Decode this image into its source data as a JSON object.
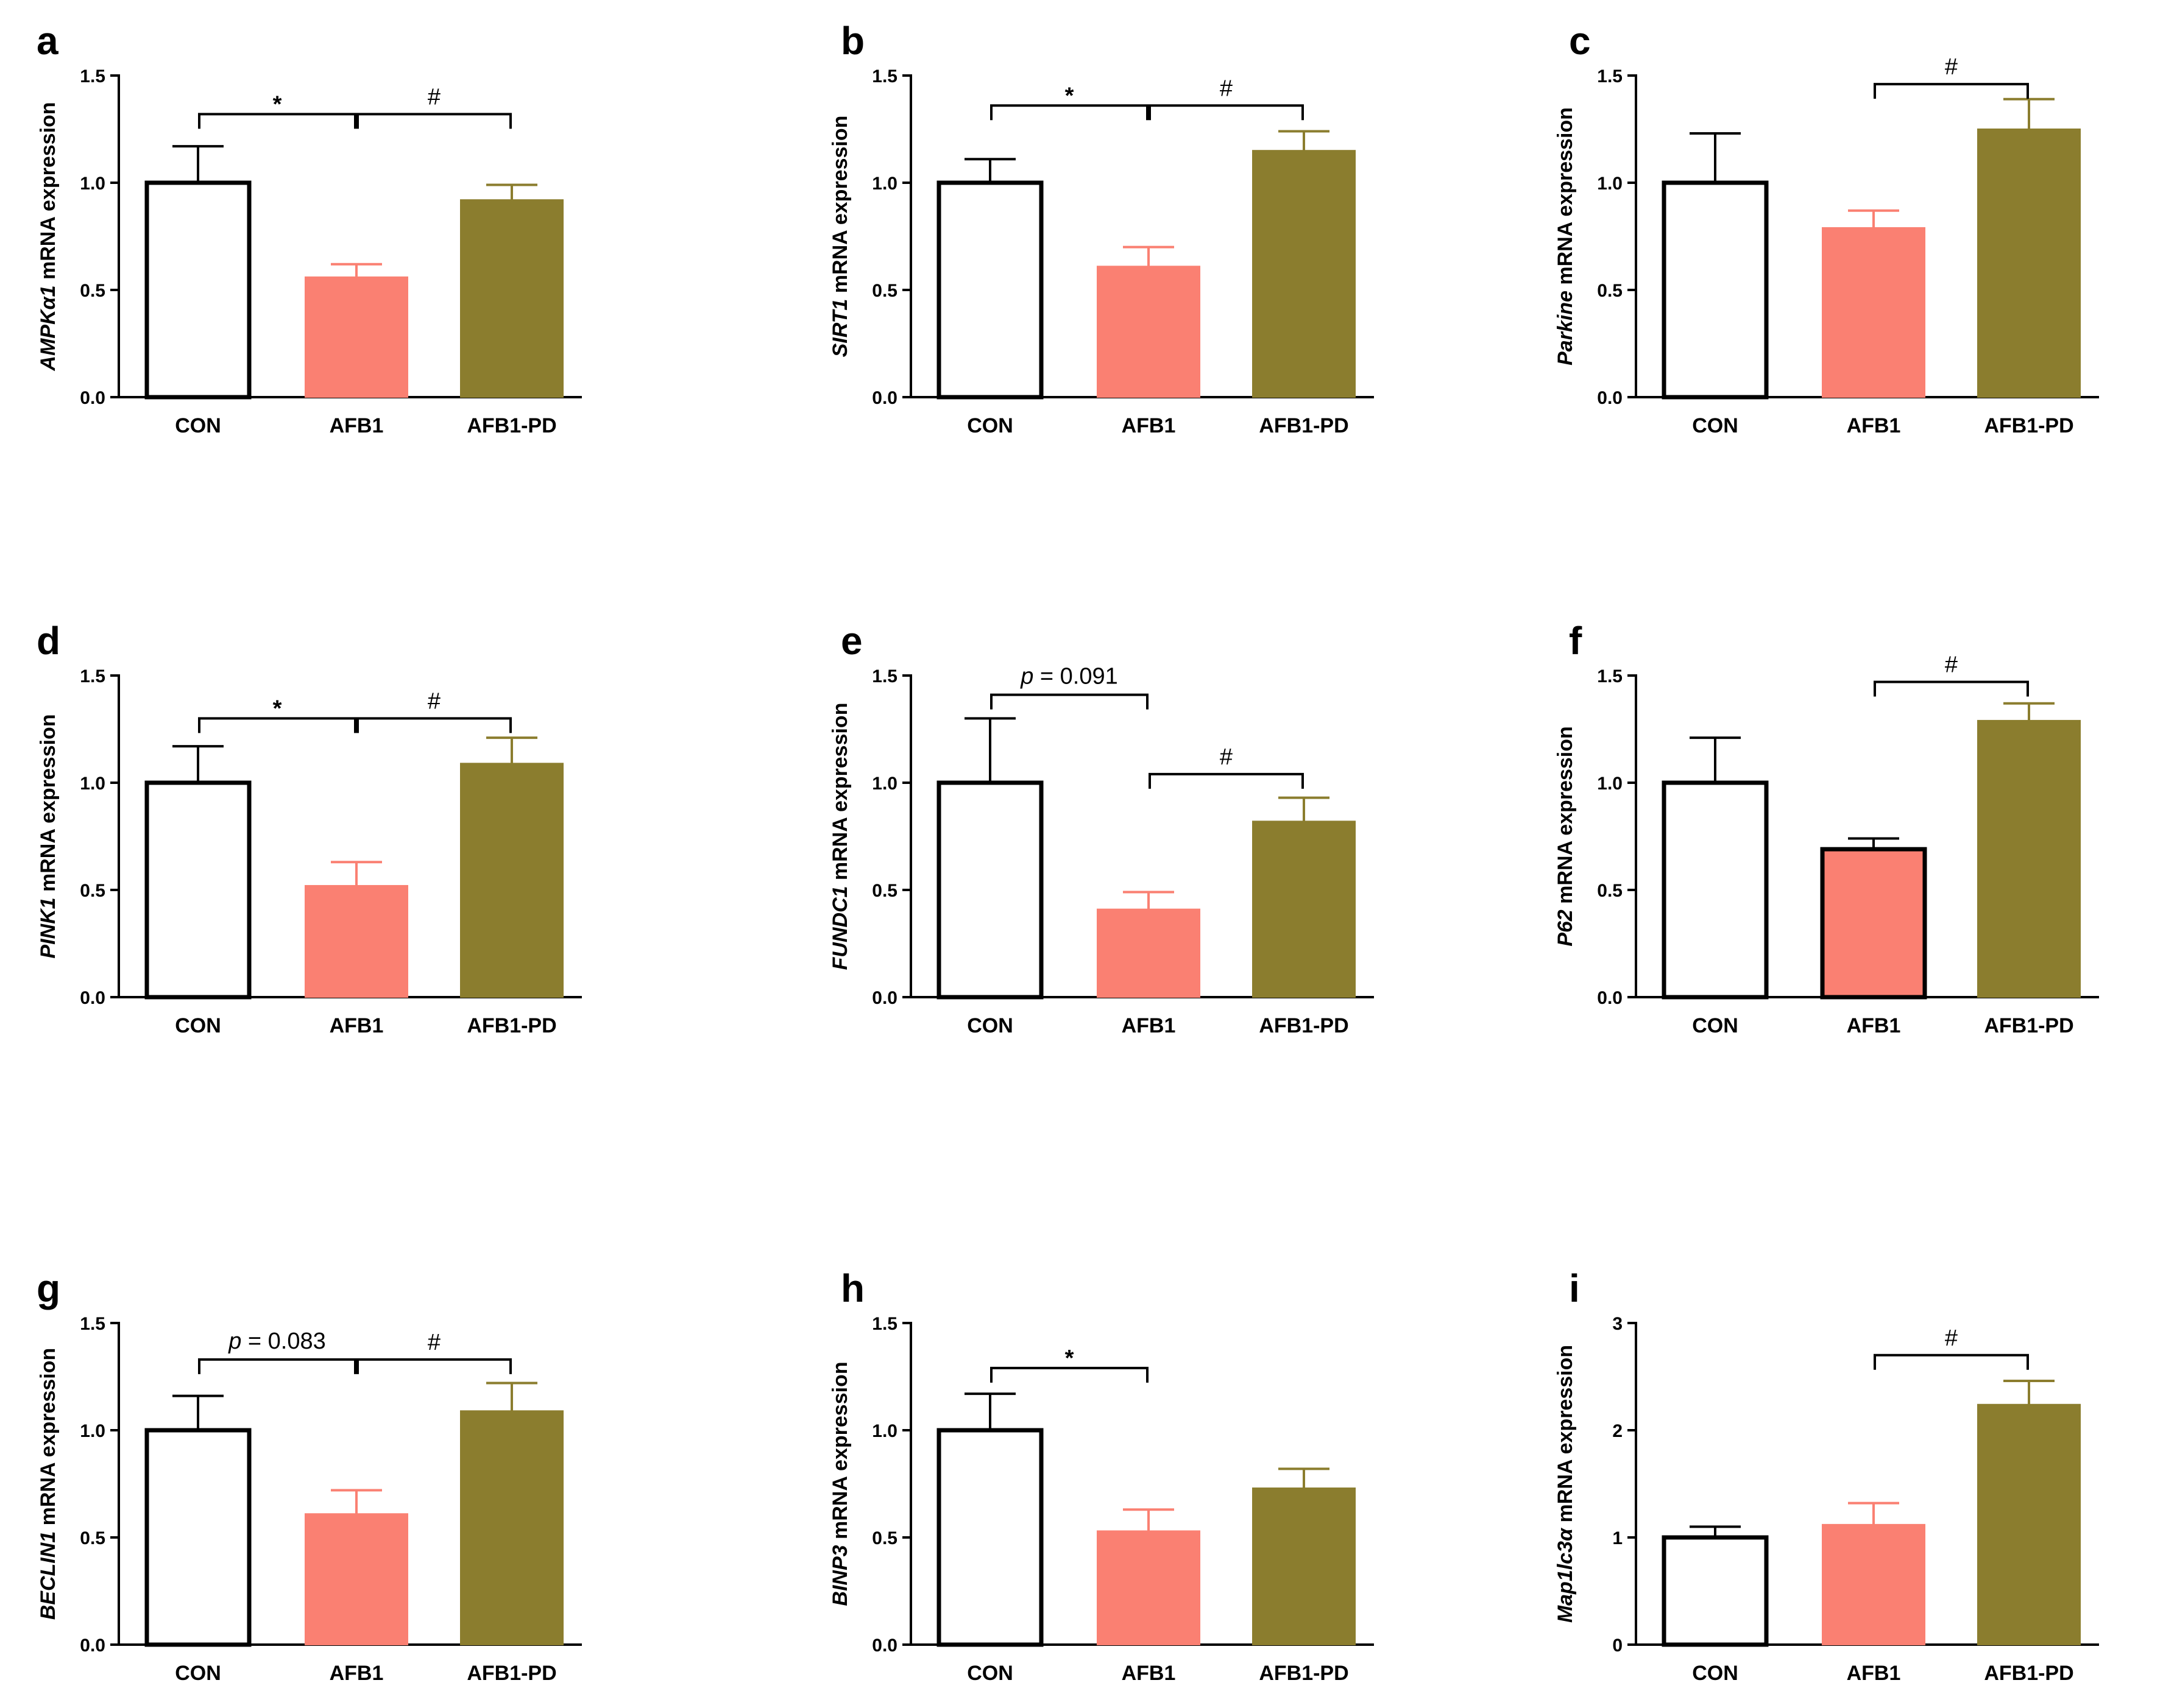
{
  "figure": {
    "background": "#ffffff"
  },
  "colors": {
    "CON": "#ffffff",
    "AFB1": "#fa8072",
    "AFB1-PD": "#8b7d2e",
    "edge": "#000000"
  },
  "chart_data": [
    {
      "panel": "a",
      "type": "bar",
      "gene": "AMPKα1",
      "ylabel_rest": " mRNA expression",
      "categories": [
        "CON",
        "AFB1",
        "AFB1-PD"
      ],
      "values": [
        1.0,
        0.56,
        0.92
      ],
      "errors": [
        0.17,
        0.06,
        0.07
      ],
      "ylim": [
        0,
        1.5
      ],
      "yticks": [
        "0.0",
        "0.5",
        "1.0",
        "1.5"
      ],
      "ytick_values": [
        0,
        0.5,
        1.0,
        1.5
      ],
      "edge_black_for": [
        "CON"
      ],
      "annotations": [
        {
          "from": 0,
          "to": 1,
          "level": 1.32,
          "text": "*",
          "kind": "star"
        },
        {
          "from": 1,
          "to": 2,
          "level": 1.32,
          "text": "#",
          "kind": "hash"
        }
      ]
    },
    {
      "panel": "b",
      "type": "bar",
      "gene": "SIRT1",
      "ylabel_rest": " mRNA expression",
      "categories": [
        "CON",
        "AFB1",
        "AFB1-PD"
      ],
      "values": [
        1.0,
        0.61,
        1.15
      ],
      "errors": [
        0.11,
        0.09,
        0.09
      ],
      "ylim": [
        0,
        1.5
      ],
      "yticks": [
        "0.0",
        "0.5",
        "1.0",
        "1.5"
      ],
      "ytick_values": [
        0,
        0.5,
        1.0,
        1.5
      ],
      "edge_black_for": [
        "CON"
      ],
      "annotations": [
        {
          "from": 0,
          "to": 1,
          "level": 1.36,
          "text": "*",
          "kind": "star"
        },
        {
          "from": 1,
          "to": 2,
          "level": 1.36,
          "text": "#",
          "kind": "hash"
        }
      ]
    },
    {
      "panel": "c",
      "type": "bar",
      "gene": "Parkine",
      "ylabel_rest": " mRNA expression",
      "categories": [
        "CON",
        "AFB1",
        "AFB1-PD"
      ],
      "values": [
        1.0,
        0.79,
        1.25
      ],
      "errors": [
        0.23,
        0.08,
        0.14
      ],
      "ylim": [
        0,
        1.5
      ],
      "yticks": [
        "0.0",
        "0.5",
        "1.0",
        "1.5"
      ],
      "ytick_values": [
        0,
        0.5,
        1.0,
        1.5
      ],
      "edge_black_for": [
        "CON"
      ],
      "annotations": [
        {
          "from": 1,
          "to": 2,
          "level": 1.46,
          "text": "#",
          "kind": "hash"
        }
      ]
    },
    {
      "panel": "d",
      "type": "bar",
      "gene": "PINK1",
      "ylabel_rest": " mRNA expression",
      "categories": [
        "CON",
        "AFB1",
        "AFB1-PD"
      ],
      "values": [
        1.0,
        0.52,
        1.09
      ],
      "errors": [
        0.17,
        0.11,
        0.12
      ],
      "ylim": [
        0,
        1.5
      ],
      "yticks": [
        "0.0",
        "0.5",
        "1.0",
        "1.5"
      ],
      "ytick_values": [
        0,
        0.5,
        1.0,
        1.5
      ],
      "edge_black_for": [
        "CON"
      ],
      "annotations": [
        {
          "from": 0,
          "to": 1,
          "level": 1.3,
          "text": "*",
          "kind": "star"
        },
        {
          "from": 1,
          "to": 2,
          "level": 1.3,
          "text": "#",
          "kind": "hash"
        }
      ]
    },
    {
      "panel": "e",
      "type": "bar",
      "gene": "FUNDC1",
      "ylabel_rest": " mRNA expression",
      "categories": [
        "CON",
        "AFB1",
        "AFB1-PD"
      ],
      "values": [
        1.0,
        0.41,
        0.82
      ],
      "errors": [
        0.3,
        0.08,
        0.11
      ],
      "ylim": [
        0,
        1.5
      ],
      "yticks": [
        "0.0",
        "0.5",
        "1.0",
        "1.5"
      ],
      "ytick_values": [
        0,
        0.5,
        1.0,
        1.5
      ],
      "edge_black_for": [
        "CON"
      ],
      "annotations": [
        {
          "from": 0,
          "to": 1,
          "level": 1.41,
          "text": "p = 0.091",
          "kind": "p"
        },
        {
          "from": 1,
          "to": 2,
          "level": 1.04,
          "text": "#",
          "kind": "hash"
        }
      ]
    },
    {
      "panel": "f",
      "type": "bar",
      "gene": "P62",
      "ylabel_rest": " mRNA expression",
      "categories": [
        "CON",
        "AFB1",
        "AFB1-PD"
      ],
      "values": [
        1.0,
        0.69,
        1.29
      ],
      "errors": [
        0.21,
        0.05,
        0.08
      ],
      "ylim": [
        0,
        1.5
      ],
      "yticks": [
        "0.0",
        "0.5",
        "1.0",
        "1.5"
      ],
      "ytick_values": [
        0,
        0.5,
        1.0,
        1.5
      ],
      "edge_black_for": [
        "CON",
        "AFB1"
      ],
      "annotations": [
        {
          "from": 1,
          "to": 2,
          "level": 1.47,
          "text": "#",
          "kind": "hash"
        }
      ]
    },
    {
      "panel": "g",
      "type": "bar",
      "gene": "BECLIN1",
      "ylabel_rest": " mRNA expression",
      "categories": [
        "CON",
        "AFB1",
        "AFB1-PD"
      ],
      "values": [
        1.0,
        0.61,
        1.09
      ],
      "errors": [
        0.16,
        0.11,
        0.13
      ],
      "ylim": [
        0,
        1.5
      ],
      "yticks": [
        "0.0",
        "0.5",
        "1.0",
        "1.5"
      ],
      "ytick_values": [
        0,
        0.5,
        1.0,
        1.5
      ],
      "edge_black_for": [
        "CON"
      ],
      "annotations": [
        {
          "from": 0,
          "to": 1,
          "level": 1.33,
          "text": "p = 0.083",
          "kind": "p"
        },
        {
          "from": 1,
          "to": 2,
          "level": 1.33,
          "text": "#",
          "kind": "hash"
        }
      ]
    },
    {
      "panel": "h",
      "type": "bar",
      "gene": "BINP3",
      "ylabel_rest": " mRNA expression",
      "categories": [
        "CON",
        "AFB1",
        "AFB1-PD"
      ],
      "values": [
        1.0,
        0.53,
        0.73
      ],
      "errors": [
        0.17,
        0.1,
        0.09
      ],
      "ylim": [
        0,
        1.5
      ],
      "yticks": [
        "0.0",
        "0.5",
        "1.0",
        "1.5"
      ],
      "ytick_values": [
        0,
        0.5,
        1.0,
        1.5
      ],
      "edge_black_for": [
        "CON"
      ],
      "annotations": [
        {
          "from": 0,
          "to": 1,
          "level": 1.29,
          "text": "*",
          "kind": "star"
        }
      ]
    },
    {
      "panel": "i",
      "type": "bar",
      "gene": "Map1lc3α",
      "ylabel_rest": " mRNA expression",
      "categories": [
        "CON",
        "AFB1",
        "AFB1-PD"
      ],
      "values": [
        1.0,
        1.12,
        2.24
      ],
      "errors": [
        0.1,
        0.2,
        0.22
      ],
      "ylim": [
        0,
        3
      ],
      "yticks": [
        "0",
        "1",
        "2",
        "3"
      ],
      "ytick_values": [
        0,
        1,
        2,
        3
      ],
      "edge_black_for": [
        "CON"
      ],
      "annotations": [
        {
          "from": 1,
          "to": 2,
          "level": 2.7,
          "text": "#",
          "kind": "hash"
        }
      ]
    }
  ]
}
